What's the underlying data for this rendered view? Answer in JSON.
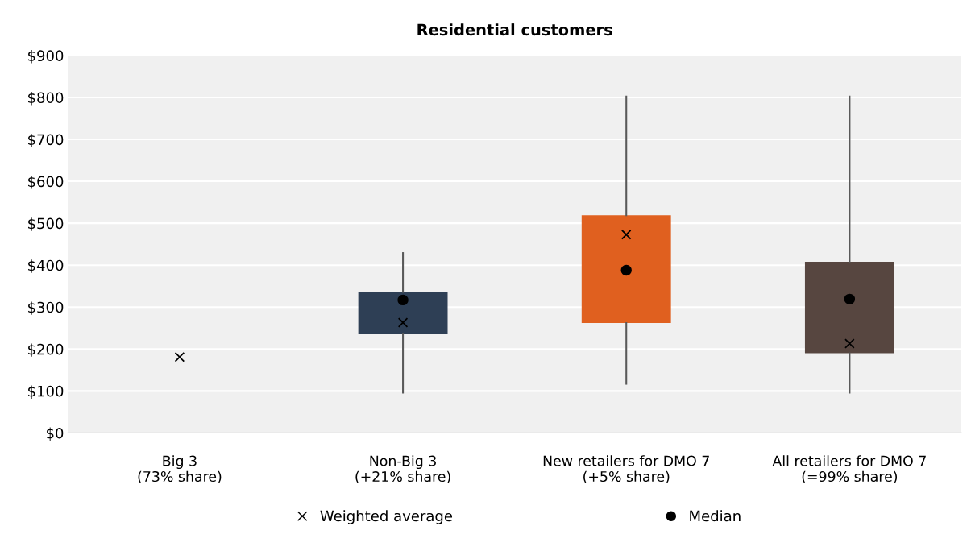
{
  "chart_data": {
    "type": "box",
    "title": "Residential customers",
    "categories": [
      "Big 3\n(73% share)",
      "Non-Big 3\n(+21% share)",
      "New retailers for DMO 7\n(+5% share)",
      "All retailers for DMO 7\n(=99% share)"
    ],
    "boxes": [
      null,
      {
        "low": 96,
        "q1": 235,
        "q3": 336,
        "high": 429
      },
      {
        "low": 117,
        "q1": 262,
        "q3": 519,
        "high": 802
      },
      {
        "low": 96,
        "q1": 190,
        "q3": 408,
        "high": 802
      }
    ],
    "colors": [
      null,
      "#2e3f55",
      "#e0601f",
      "#574640"
    ],
    "series": [
      {
        "name": "Weighted average",
        "type": "scatter",
        "marker": "cross",
        "color": "#000000",
        "values": [
          181,
          263,
          473,
          213
        ]
      },
      {
        "name": "Median",
        "type": "scatter",
        "marker": "circle",
        "color": "#000000",
        "values": [
          null,
          317,
          388,
          319
        ]
      }
    ],
    "ylim": [
      0,
      900
    ],
    "yticks": [
      {
        "value": 0,
        "label": "$0"
      },
      {
        "value": 100,
        "label": "$100"
      },
      {
        "value": 200,
        "label": "$200"
      },
      {
        "value": 300,
        "label": "$300"
      },
      {
        "value": 400,
        "label": "$400"
      },
      {
        "value": 500,
        "label": "$500"
      },
      {
        "value": 600,
        "label": "$600"
      },
      {
        "value": 700,
        "label": "$700"
      },
      {
        "value": 800,
        "label": "$800"
      },
      {
        "value": 900,
        "label": "$900"
      }
    ],
    "grid": "y",
    "legend": "bottom"
  }
}
